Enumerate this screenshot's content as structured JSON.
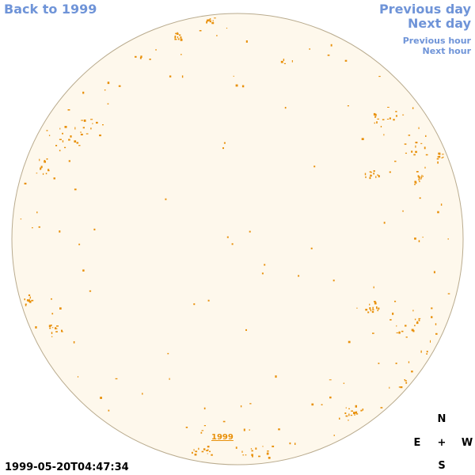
{
  "nav": {
    "back_label": "Back to 1999",
    "prev_day_label": "Previous day",
    "next_day_label": "Next day",
    "prev_hour_label": "Previous hour",
    "next_hour_label": "Next hour"
  },
  "compass": {
    "n": "N",
    "e": "E",
    "center": "+",
    "w": "W",
    "s": "S"
  },
  "timestamp": "1999-05-20T04:47:34",
  "year_label": "1999",
  "colors": {
    "disk_fill": "#fef8ec",
    "disk_stroke": "#b9ab8e",
    "feature": "#e8900a",
    "link": "#6f94d8"
  }
}
